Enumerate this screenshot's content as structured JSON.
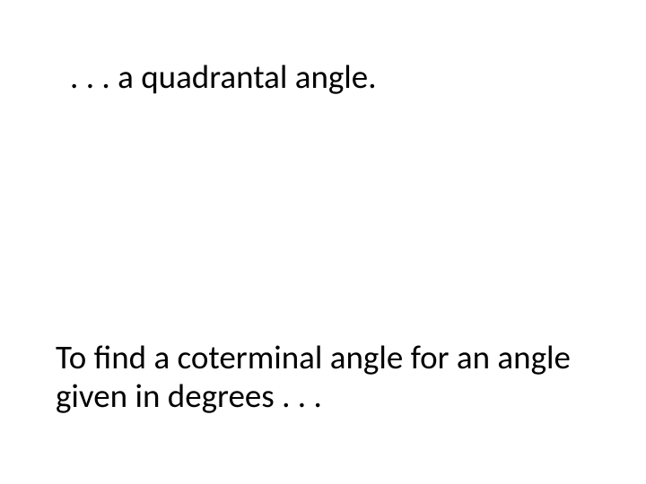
{
  "slide": {
    "topText": ". . . a quadrantal angle.",
    "bottomText": "To find a coterminal angle for an angle given in degrees . . ."
  }
}
